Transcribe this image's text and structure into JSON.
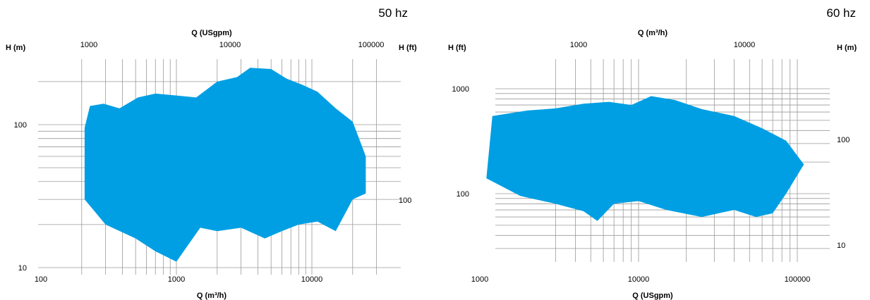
{
  "chart_data": [
    {
      "type": "area",
      "frequency_label": "50 hz",
      "top_axis_title": "Q (USgpm)",
      "top_ticks": [
        "1000",
        "10000",
        "100000"
      ],
      "bottom_axis_title": "Q (m³/h)",
      "bottom_ticks": [
        "100",
        "1000",
        "10000"
      ],
      "left_axis_title": "H (m)",
      "left_ticks": [
        "100",
        "10"
      ],
      "right_axis_title": "H (ft)",
      "right_ticks": [
        "100"
      ],
      "x_scale": "log",
      "y_scale": "log",
      "xlim": [
        100,
        30000
      ],
      "ylim": [
        10,
        300
      ],
      "grid": true,
      "color": "#009fe3",
      "coverage_upper": [
        [
          210,
          95
        ],
        [
          230,
          135
        ],
        [
          290,
          140
        ],
        [
          380,
          130
        ],
        [
          520,
          155
        ],
        [
          700,
          165
        ],
        [
          1000,
          160
        ],
        [
          1400,
          155
        ],
        [
          2000,
          200
        ],
        [
          2800,
          215
        ],
        [
          3500,
          250
        ],
        [
          5000,
          245
        ],
        [
          6500,
          210
        ],
        [
          8500,
          190
        ],
        [
          11000,
          170
        ],
        [
          15000,
          130
        ],
        [
          20000,
          105
        ],
        [
          25000,
          60
        ]
      ],
      "coverage_lower": [
        [
          210,
          30
        ],
        [
          300,
          20
        ],
        [
          500,
          16
        ],
        [
          700,
          13
        ],
        [
          1000,
          11
        ],
        [
          1500,
          19
        ],
        [
          2000,
          18
        ],
        [
          3000,
          19
        ],
        [
          4500,
          16
        ],
        [
          6000,
          18
        ],
        [
          8000,
          20
        ],
        [
          11000,
          21
        ],
        [
          15000,
          18
        ],
        [
          20000,
          30
        ],
        [
          25000,
          33
        ]
      ]
    },
    {
      "type": "area",
      "frequency_label": "60 hz",
      "top_axis_title": "Q (m³/h)",
      "top_ticks": [
        "1000",
        "10000"
      ],
      "bottom_axis_title": "Q (USgpm)",
      "bottom_ticks": [
        "1000",
        "10000",
        "100000"
      ],
      "left_axis_title": "H (ft)",
      "left_ticks": [
        "1000",
        "100"
      ],
      "right_axis_title": "H (m)",
      "right_ticks": [
        "100",
        "10"
      ],
      "x_scale": "log",
      "y_scale": "log",
      "xlim": [
        1000,
        150000
      ],
      "ylim": [
        30,
        1800
      ],
      "grid": true,
      "color": "#009fe3",
      "coverage_upper": [
        [
          1200,
          550
        ],
        [
          2000,
          620
        ],
        [
          3000,
          650
        ],
        [
          4500,
          720
        ],
        [
          6500,
          750
        ],
        [
          9000,
          700
        ],
        [
          12000,
          850
        ],
        [
          17000,
          780
        ],
        [
          25000,
          640
        ],
        [
          40000,
          550
        ],
        [
          60000,
          420
        ],
        [
          85000,
          320
        ],
        [
          110000,
          190
        ]
      ],
      "coverage_lower": [
        [
          1100,
          140
        ],
        [
          1800,
          95
        ],
        [
          3000,
          80
        ],
        [
          4500,
          68
        ],
        [
          5500,
          55
        ],
        [
          7000,
          80
        ],
        [
          10000,
          85
        ],
        [
          15000,
          70
        ],
        [
          25000,
          60
        ],
        [
          40000,
          70
        ],
        [
          55000,
          60
        ],
        [
          70000,
          65
        ],
        [
          85000,
          100
        ],
        [
          110000,
          190
        ]
      ]
    }
  ]
}
